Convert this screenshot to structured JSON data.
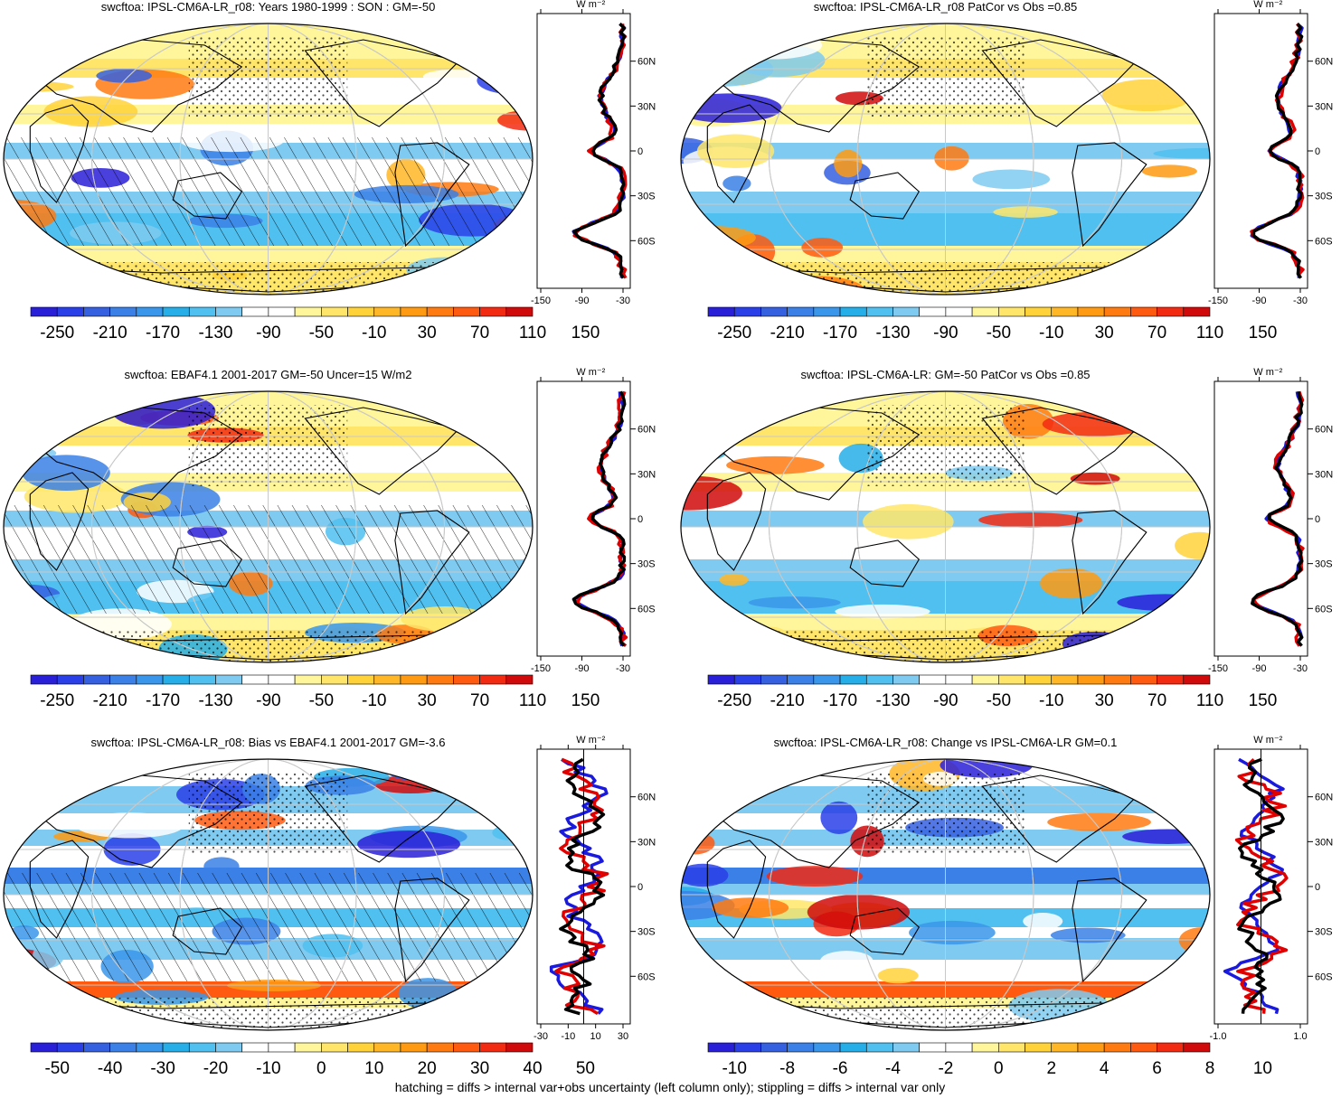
{
  "footer": "hatching = diffs > internal var+obs uncertainty (left column only); stippling = diffs > internal var only",
  "colors": {
    "land_outline": "#000000",
    "grid": "#c8c8c8",
    "model_line": "#e00000",
    "obs_line": "#1a1adf",
    "ref_line": "#000000"
  },
  "panels": [
    {
      "title": "swcftoa: IPSL-CM6A-LR_r08: Years 1980-1999 : SON : GM=-50",
      "colorbar": [
        "-250",
        "-210",
        "-170",
        "-130",
        "-90",
        "-50",
        "-10",
        "30",
        "70",
        "110",
        "150"
      ],
      "profile_xticks": [
        "-150",
        "-90",
        "-30"
      ],
      "profile_unit": "W m⁻²",
      "lat_ticks": [
        "60N",
        "30N",
        "0",
        "30S",
        "60S"
      ],
      "palette": "full"
    },
    {
      "title": "swcftoa: IPSL-CM6A-LR_r08 PatCor vs Obs =0.85",
      "colorbar": [
        "-250",
        "-210",
        "-170",
        "-130",
        "-90",
        "-50",
        "-10",
        "30",
        "70",
        "110",
        "150"
      ],
      "profile_xticks": [
        "-150",
        "-90",
        "-30"
      ],
      "profile_unit": "W m⁻²",
      "lat_ticks": [
        "60N",
        "30N",
        "0",
        "30S",
        "60S"
      ],
      "palette": "full"
    },
    {
      "title": "swcftoa: EBAF4.1 2001-2017 GM=-50 Uncer=15 W/m2",
      "colorbar": [
        "-250",
        "-210",
        "-170",
        "-130",
        "-90",
        "-50",
        "-10",
        "30",
        "70",
        "110",
        "150"
      ],
      "profile_xticks": [
        "-150",
        "-90",
        "-30"
      ],
      "profile_unit": "W m⁻²",
      "lat_ticks": [
        "60N",
        "30N",
        "0",
        "30S",
        "60S"
      ],
      "palette": "full"
    },
    {
      "title": "swcftoa: IPSL-CM6A-LR: GM=-50 PatCor vs Obs =0.85",
      "colorbar": [
        "-250",
        "-210",
        "-170",
        "-130",
        "-90",
        "-50",
        "-10",
        "30",
        "70",
        "110",
        "150"
      ],
      "profile_xticks": [
        "-150",
        "-90",
        "-30"
      ],
      "profile_unit": "W m⁻²",
      "lat_ticks": [
        "60N",
        "30N",
        "0",
        "30S",
        "60S"
      ],
      "palette": "full"
    },
    {
      "title": "swcftoa: IPSL-CM6A-LR_r08: Bias vs EBAF4.1 2001-2017  GM=-3.6",
      "colorbar": [
        "-50",
        "-40",
        "-30",
        "-20",
        "-10",
        "0",
        "10",
        "20",
        "30",
        "40",
        "50"
      ],
      "profile_xticks": [
        "-30",
        "-10",
        "10",
        "30"
      ],
      "profile_unit": "W m⁻²",
      "lat_ticks": [
        "60N",
        "30N",
        "0",
        "30S",
        "60S"
      ],
      "palette": "diff"
    },
    {
      "title": "swcftoa: IPSL-CM6A-LR_r08: Change vs IPSL-CM6A-LR GM=0.1",
      "colorbar": [
        "-10",
        "-8",
        "-6",
        "-4",
        "-2",
        "0",
        "2",
        "4",
        "6",
        "8",
        "10"
      ],
      "profile_xticks": [
        "-1.0",
        "1.0"
      ],
      "profile_unit": "W m⁻²",
      "lat_ticks": [
        "60N",
        "30N",
        "0",
        "30S",
        "60S"
      ],
      "palette": "diff"
    }
  ]
}
